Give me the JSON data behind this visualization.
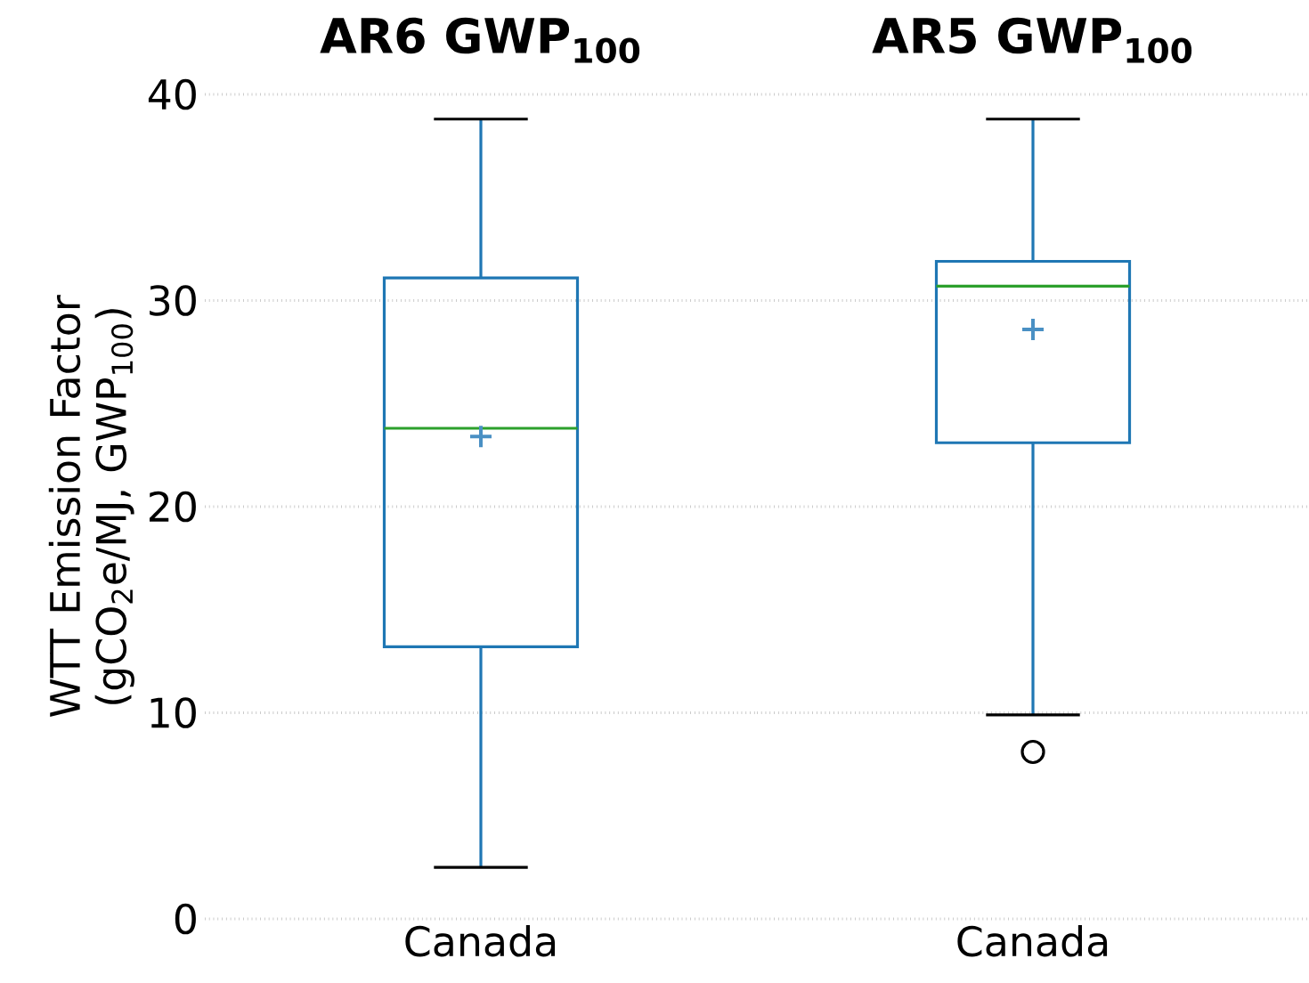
{
  "chart_data": [
    {
      "type": "box",
      "title": "AR6 GWP$_{100}$",
      "ylabel": "WTT Emission Factor (gCO$_{2}$e/MJ, GWP$_{100}$)",
      "categories": [
        "Canada"
      ],
      "series": [
        {
          "color": "#1f77b4",
          "boxes": [
            {
              "low": 2.5,
              "q1": 13.2,
              "median": 23.8,
              "q3": 31.1,
              "high": 38.8,
              "mean": 23.4
            }
          ]
        }
      ],
      "ylim": [
        0,
        40
      ],
      "yticks": [
        0,
        10,
        20,
        30,
        40
      ],
      "grid": "y"
    },
    {
      "type": "box",
      "title": "AR5 GWP$_{100}$",
      "categories": [
        "Canada"
      ],
      "series": [
        {
          "color": "#1f77b4",
          "boxes": [
            {
              "low": 9.9,
              "q1": 23.1,
              "median": 30.7,
              "q3": 31.9,
              "high": 38.8,
              "mean": 28.6,
              "outliers": [
                8.1
              ]
            }
          ]
        }
      ],
      "ylim": [
        0,
        40
      ],
      "yticks": [
        0,
        10,
        20,
        30,
        40
      ],
      "grid": "y",
      "tick_labels": "x"
    }
  ]
}
